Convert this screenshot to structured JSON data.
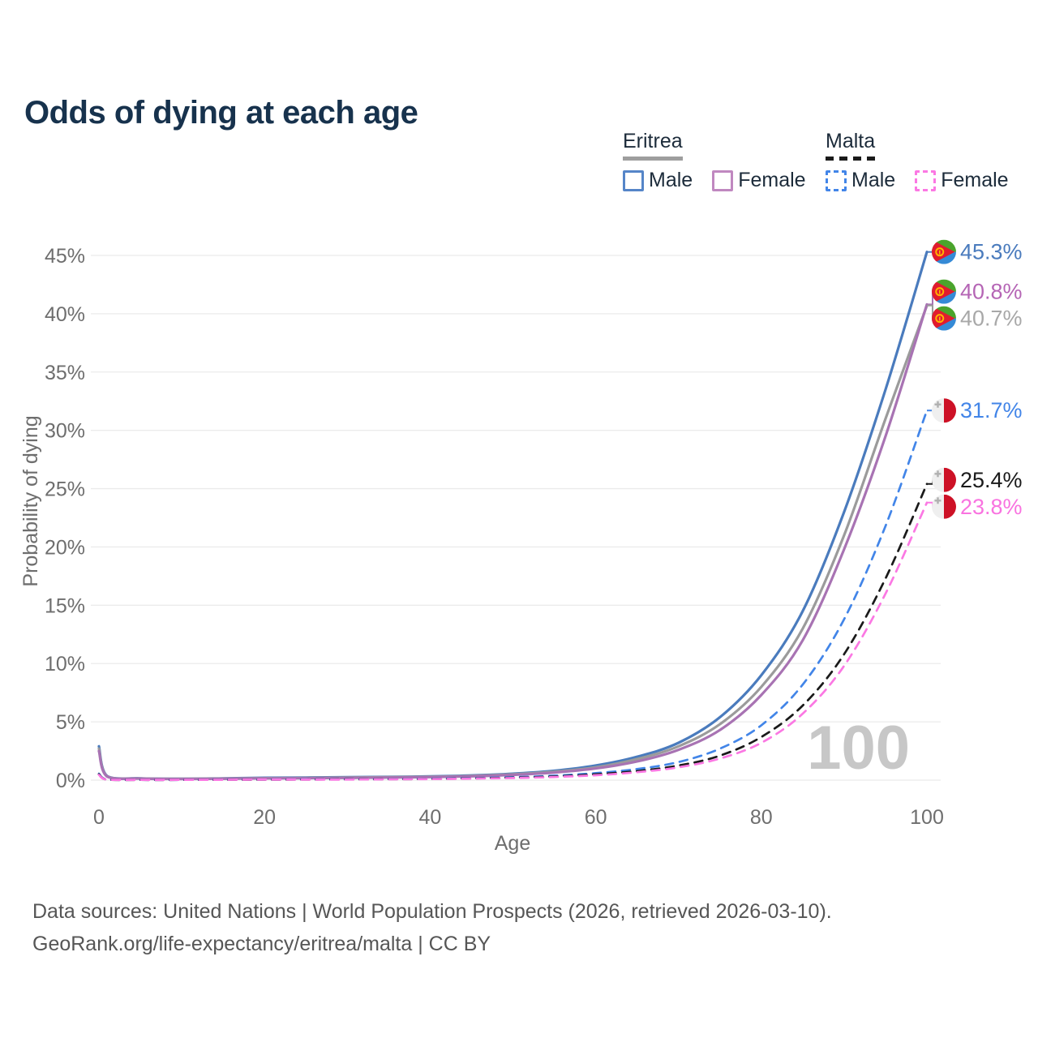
{
  "title": "Odds of dying at each age",
  "legend": {
    "groups": [
      {
        "country": "Eritrea",
        "line_style": "solid",
        "underline_color": "#9e9e9e",
        "items": [
          {
            "label": "Male",
            "box_color": "#5585c8",
            "box_style": "solid"
          },
          {
            "label": "Female",
            "box_color": "#c088c0",
            "box_style": "solid"
          }
        ]
      },
      {
        "country": "Malta",
        "line_style": "dashed",
        "underline_color": "#1a1a1a",
        "items": [
          {
            "label": "Male",
            "box_color": "#4285e8",
            "box_style": "dashed"
          },
          {
            "label": "Female",
            "box_color": "#fb78e3",
            "box_style": "dashed"
          }
        ]
      }
    ]
  },
  "chart_data": {
    "type": "line",
    "title": "Odds of dying at each age",
    "xlabel": "Age",
    "ylabel": "Probability of dying",
    "xlim": [
      0,
      100
    ],
    "ylim": [
      0,
      46
    ],
    "xticks": [
      0,
      20,
      40,
      60,
      80,
      100
    ],
    "yticks": [
      0,
      5,
      10,
      15,
      20,
      25,
      30,
      35,
      40,
      45
    ],
    "ytick_suffix": "%",
    "grid": "horizontal-only",
    "legend_position": "top-right",
    "watermark": "100",
    "x": [
      0,
      1,
      5,
      10,
      15,
      20,
      25,
      30,
      35,
      40,
      45,
      50,
      55,
      60,
      65,
      70,
      75,
      80,
      85,
      90,
      95,
      100
    ],
    "series": [
      {
        "name": "Eritrea Male",
        "country": "Eritrea",
        "sex": "Male",
        "style": "solid",
        "color": "#4a7bbd",
        "label_color": "#4a7bbd",
        "end_label": "45.3%",
        "flag": "eritrea",
        "values": [
          2.9,
          0.35,
          0.15,
          0.12,
          0.15,
          0.2,
          0.22,
          0.25,
          0.28,
          0.32,
          0.4,
          0.55,
          0.8,
          1.25,
          2.0,
          3.2,
          5.4,
          9.0,
          14.5,
          23.0,
          33.5,
          45.3
        ]
      },
      {
        "name": "Eritrea Both sexes",
        "country": "Eritrea",
        "sex": "Both",
        "style": "solid",
        "color": "#9b9b9b",
        "label_color": "#a8a8a8",
        "end_label": "40.7%",
        "flag": "eritrea",
        "values": [
          2.7,
          0.32,
          0.14,
          0.11,
          0.13,
          0.17,
          0.19,
          0.22,
          0.25,
          0.29,
          0.36,
          0.5,
          0.72,
          1.1,
          1.8,
          2.9,
          4.8,
          8.0,
          13.0,
          21.0,
          31.0,
          40.7
        ]
      },
      {
        "name": "Eritrea Female",
        "country": "Eritrea",
        "sex": "Female",
        "style": "solid",
        "color": "#a873b3",
        "label_color": "#b565b5",
        "end_label": "40.8%",
        "flag": "eritrea",
        "values": [
          2.5,
          0.3,
          0.13,
          0.1,
          0.12,
          0.15,
          0.17,
          0.19,
          0.22,
          0.26,
          0.33,
          0.45,
          0.65,
          1.0,
          1.6,
          2.6,
          4.3,
          7.3,
          12.0,
          19.8,
          29.5,
          40.8
        ]
      },
      {
        "name": "Malta Male",
        "country": "Malta",
        "sex": "Male",
        "style": "dashed",
        "color": "#4285e8",
        "label_color": "#4285e8",
        "end_label": "31.7%",
        "flag": "malta",
        "values": [
          0.55,
          0.05,
          0.02,
          0.02,
          0.04,
          0.05,
          0.06,
          0.07,
          0.09,
          0.12,
          0.18,
          0.25,
          0.38,
          0.6,
          0.95,
          1.55,
          2.7,
          4.7,
          8.2,
          13.8,
          21.8,
          31.7
        ]
      },
      {
        "name": "Malta Both sexes",
        "country": "Malta",
        "sex": "Both",
        "style": "dashed",
        "color": "#1a1a1a",
        "label_color": "#1a1a1a",
        "end_label": "25.4%",
        "flag": "malta",
        "values": [
          0.5,
          0.04,
          0.02,
          0.02,
          0.03,
          0.04,
          0.05,
          0.06,
          0.08,
          0.1,
          0.15,
          0.21,
          0.31,
          0.5,
          0.78,
          1.25,
          2.1,
          3.7,
          6.4,
          10.8,
          17.3,
          25.4
        ]
      },
      {
        "name": "Malta Female",
        "country": "Malta",
        "sex": "Female",
        "style": "dashed",
        "color": "#fb78e3",
        "label_color": "#f973e0",
        "end_label": "23.8%",
        "flag": "malta",
        "values": [
          0.45,
          0.04,
          0.02,
          0.02,
          0.03,
          0.04,
          0.04,
          0.05,
          0.07,
          0.09,
          0.13,
          0.18,
          0.27,
          0.42,
          0.68,
          1.1,
          1.85,
          3.2,
          5.7,
          9.8,
          16.0,
          23.8
        ]
      }
    ]
  },
  "footer": {
    "line1": "Data sources: United Nations | World Population Prospects (2026, retrieved 2026-03-10).",
    "line2": "GeoRank.org/life-expectancy/eritrea/malta | CC BY"
  },
  "colors": {
    "title_text": "#17324d",
    "axis_text": "#6e6e6e",
    "gridline": "#ebebeb",
    "watermark": "#c7c7c7",
    "legend_text": "#1c2b3a",
    "footer_text": "#565656",
    "flag_eritrea_green": "#4aa42c",
    "flag_eritrea_red": "#e11b2e",
    "flag_eritrea_blue": "#358ad6",
    "flag_eritrea_gold": "#ffb300",
    "flag_malta_white": "#efefef",
    "flag_malta_red": "#cd1126",
    "flag_malta_cross": "#b0b0b0"
  }
}
